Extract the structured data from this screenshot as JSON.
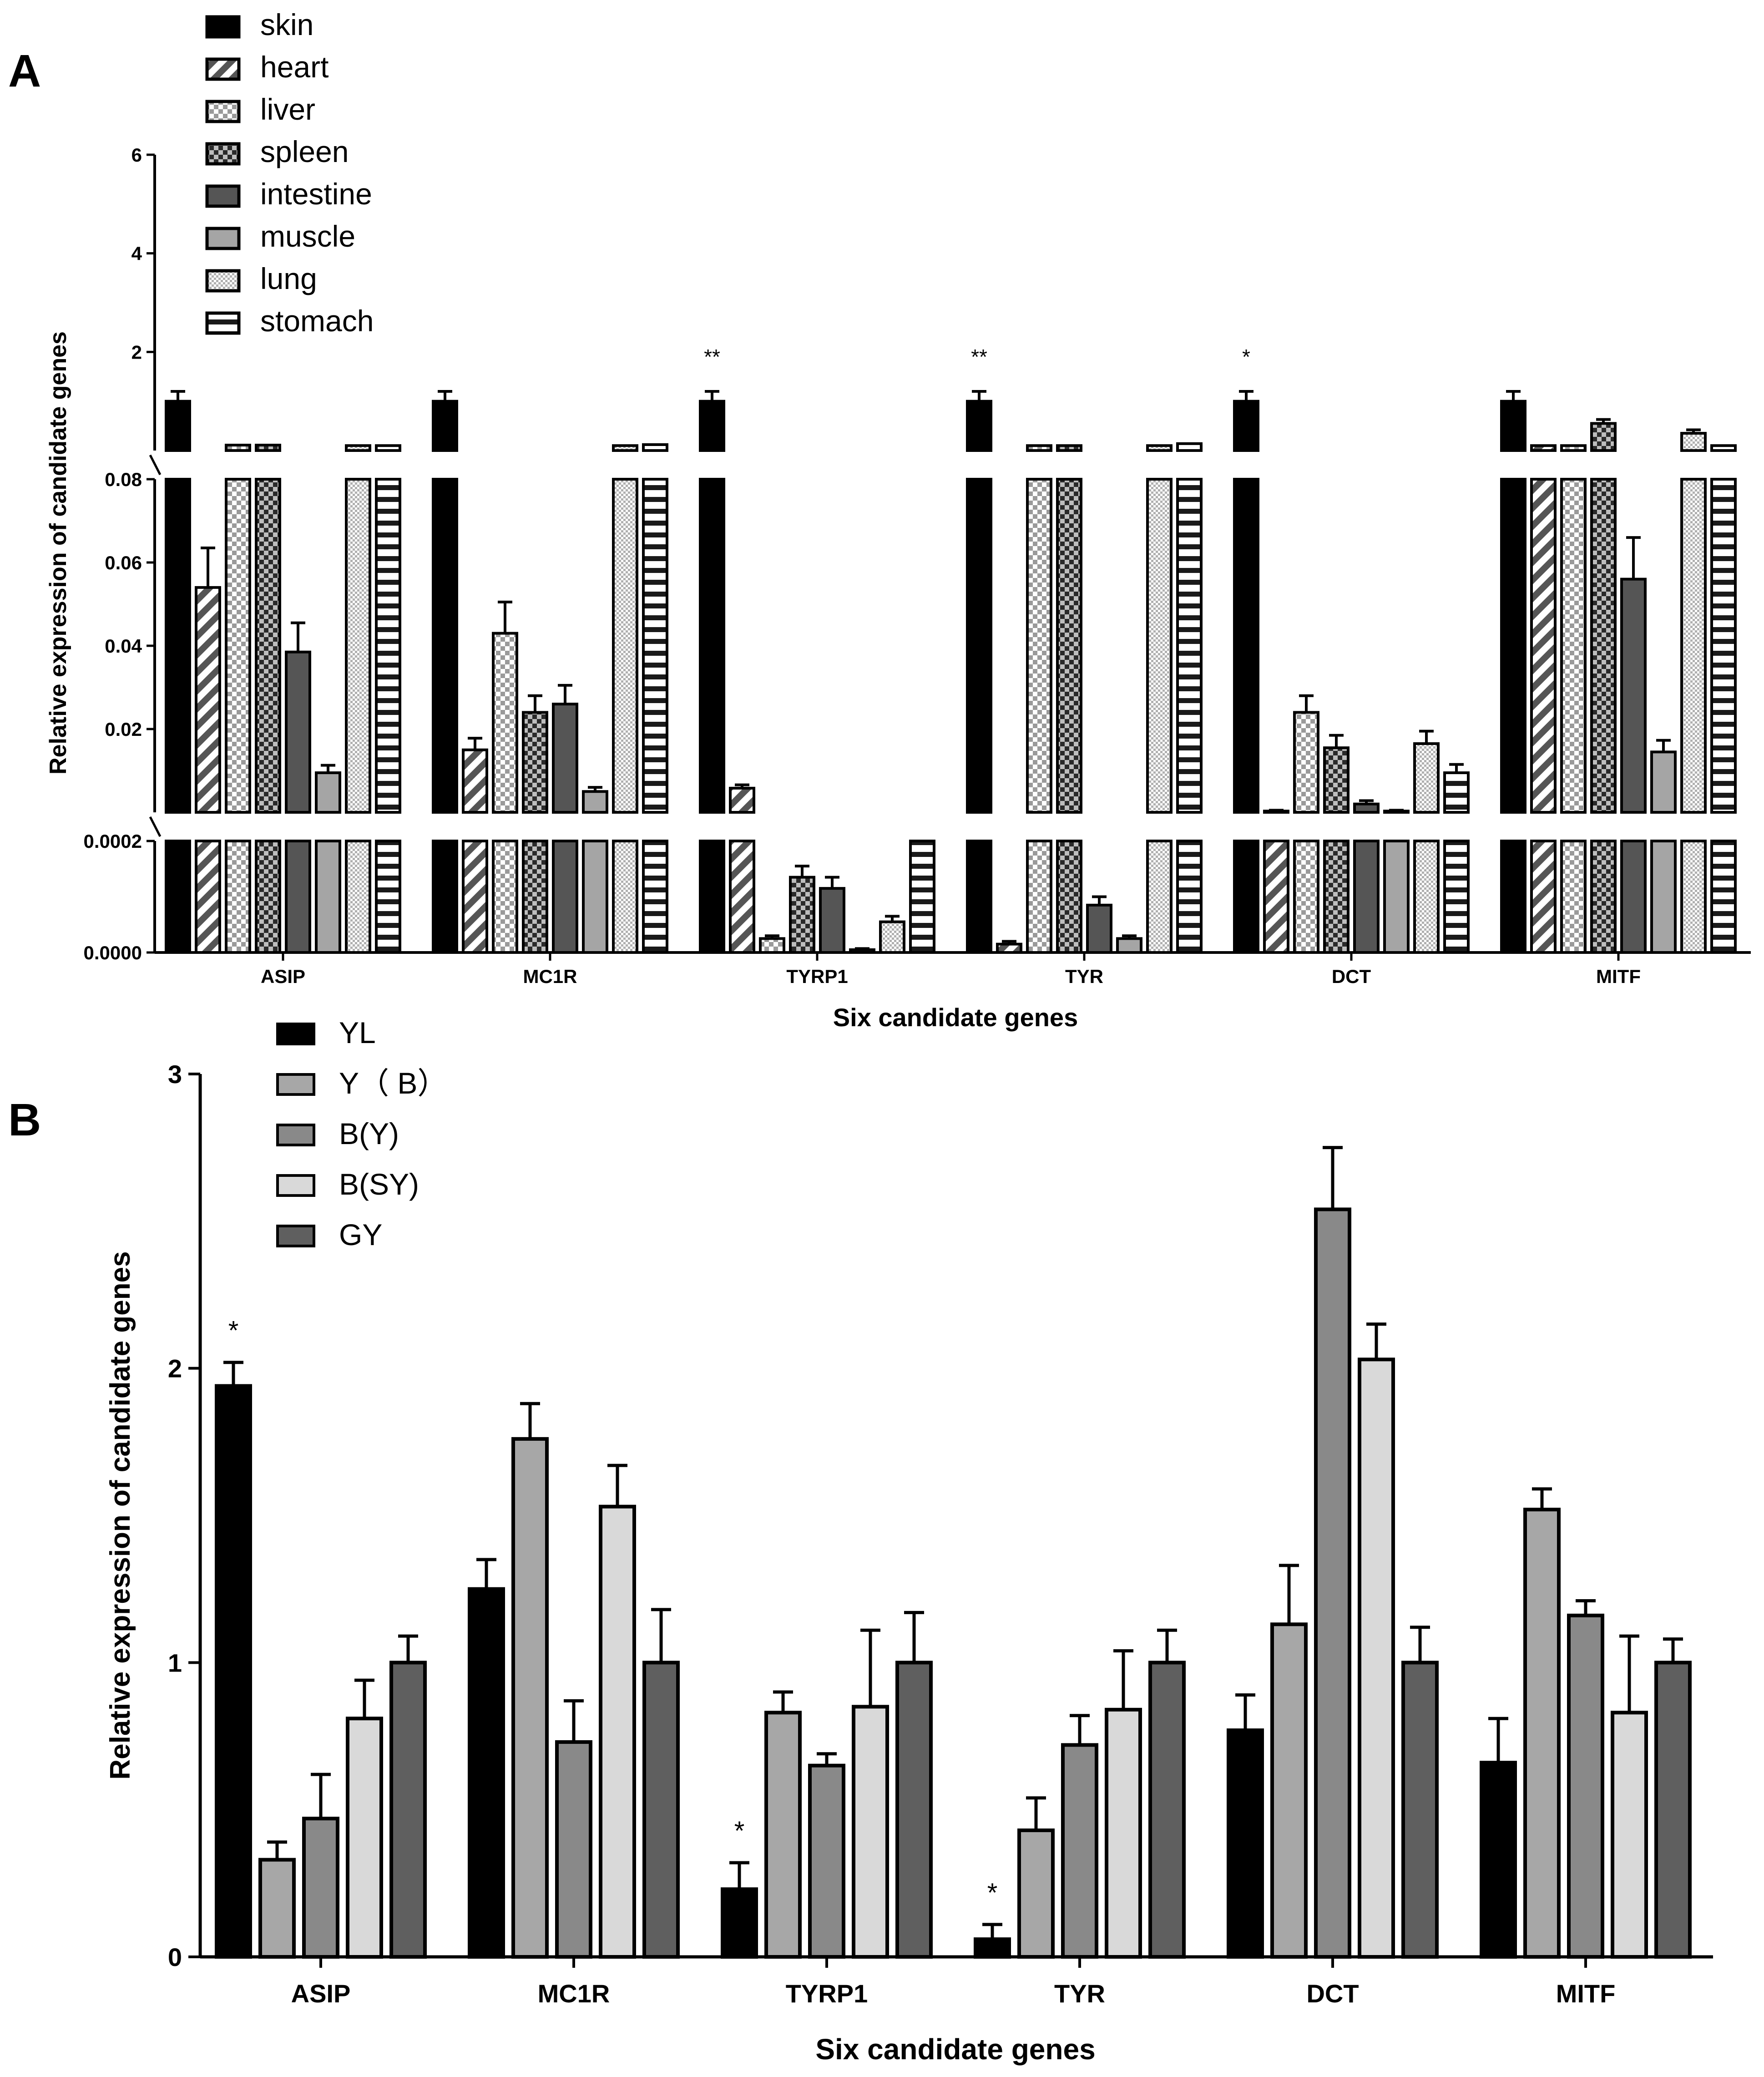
{
  "chart_data": [
    {
      "panel": "A",
      "type": "bar",
      "xlabel": "Six candidate genes",
      "ylabel": "Relative expression of candidate genes",
      "categories": [
        "ASIP",
        "MC1R",
        "TYRP1",
        "TYR",
        "DCT",
        "MITF"
      ],
      "axis_breaks": [
        {
          "segment": "low",
          "ylim": [
            0,
            0.0002
          ],
          "ticks": [
            0,
            0.0002
          ],
          "tick_labels": [
            "0.0000",
            "0.0002"
          ]
        },
        {
          "segment": "mid",
          "ylim": [
            0,
            0.08
          ],
          "ticks": [
            0.02,
            0.04,
            0.06,
            0.08
          ],
          "tick_labels": [
            "0.02",
            "0.04",
            "0.06",
            "0.08"
          ]
        },
        {
          "segment": "high",
          "ylim": [
            0.08,
            6
          ],
          "ticks": [
            2,
            4,
            6
          ],
          "tick_labels": [
            "2",
            "4",
            "6"
          ]
        }
      ],
      "series": [
        {
          "name": "skin",
          "pattern": "solid-black",
          "values": [
            1.0,
            1.0,
            1.0,
            1.0,
            1.0,
            1.0
          ],
          "errors": [
            0.2,
            0.2,
            0.2,
            0.2,
            0.2,
            0.2
          ]
        },
        {
          "name": "heart",
          "pattern": "diagonal",
          "values": [
            0.054,
            0.015,
            0.0058,
            1.5e-05,
            0.0003,
            0.1
          ],
          "errors": [
            0.0095,
            0.0028,
            0.0008,
            5e-06,
            0.0002,
            0.01
          ]
        },
        {
          "name": "liver",
          "pattern": "checker-light",
          "values": [
            0.11,
            0.043,
            2.5e-05,
            0.1,
            0.024,
            0.1
          ],
          "errors": [
            0.01,
            0.0075,
            5e-06,
            0.01,
            0.004,
            0.01
          ]
        },
        {
          "name": "spleen",
          "pattern": "checker-dark",
          "values": [
            0.11,
            0.024,
            0.000135,
            0.1,
            0.0155,
            0.55
          ],
          "errors": [
            0.01,
            0.004,
            2e-05,
            0.01,
            0.003,
            0.08
          ]
        },
        {
          "name": "intestine",
          "pattern": "solid-dark",
          "values": [
            0.0385,
            0.026,
            0.000115,
            8.5e-05,
            0.002,
            0.056
          ],
          "errors": [
            0.007,
            0.0045,
            2e-05,
            1.5e-05,
            0.0008,
            0.01
          ]
        },
        {
          "name": "muscle",
          "pattern": "solid-gray",
          "values": [
            0.0095,
            0.005,
            5e-06,
            2.5e-05,
            0.0003,
            0.0145
          ],
          "errors": [
            0.0018,
            0.001,
            2e-06,
            5e-06,
            0.0002,
            0.0028
          ]
        },
        {
          "name": "lung",
          "pattern": "fine-dots",
          "values": [
            0.1,
            0.1,
            5.5e-05,
            0.1,
            0.0165,
            0.35
          ],
          "errors": [
            0.01,
            0.01,
            1e-05,
            0.01,
            0.003,
            0.07
          ]
        },
        {
          "name": "stomach",
          "pattern": "horizontal-stripes",
          "values": [
            0.1,
            0.12,
            0.0002,
            0.14,
            0.0095,
            0.1
          ],
          "errors": [
            0.01,
            0.01,
            3e-05,
            0.01,
            0.002,
            0.01
          ]
        }
      ],
      "significance": [
        {
          "category": "TYRP1",
          "mark": "**"
        },
        {
          "category": "TYR",
          "mark": "**"
        },
        {
          "category": "DCT",
          "mark": "*"
        }
      ],
      "legend_position": "top-left"
    },
    {
      "panel": "B",
      "type": "bar",
      "xlabel": "Six candidate genes",
      "ylabel": "Relative expression of candidate genes",
      "categories": [
        "ASIP",
        "MC1R",
        "TYRP1",
        "TYR",
        "DCT",
        "MITF"
      ],
      "ylim": [
        0,
        3
      ],
      "ticks": [
        0,
        1,
        2,
        3
      ],
      "tick_labels": [
        "0",
        "1",
        "2",
        "3"
      ],
      "series": [
        {
          "name": "YL",
          "color": "#000000",
          "values": [
            1.94,
            1.25,
            0.23,
            0.06,
            0.77,
            0.66
          ],
          "errors": [
            0.08,
            0.1,
            0.09,
            0.05,
            0.12,
            0.15
          ]
        },
        {
          "name": "Y（ B）",
          "color": "#a7a7a7",
          "values": [
            0.33,
            1.76,
            0.83,
            0.43,
            1.13,
            1.52
          ],
          "errors": [
            0.06,
            0.12,
            0.07,
            0.11,
            0.2,
            0.07
          ]
        },
        {
          "name": "B(Y)",
          "color": "#898989",
          "values": [
            0.47,
            0.73,
            0.65,
            0.72,
            2.54,
            1.16
          ],
          "errors": [
            0.15,
            0.14,
            0.04,
            0.1,
            0.21,
            0.05
          ]
        },
        {
          "name": "B(SY)",
          "color": "#d9d9d9",
          "values": [
            0.81,
            1.53,
            0.85,
            0.84,
            2.03,
            0.83
          ],
          "errors": [
            0.13,
            0.14,
            0.26,
            0.2,
            0.12,
            0.26
          ]
        },
        {
          "name": "GY",
          "color": "#5f5f5f",
          "values": [
            1.0,
            1.0,
            1.0,
            1.0,
            1.0,
            1.0
          ],
          "errors": [
            0.09,
            0.18,
            0.17,
            0.11,
            0.12,
            0.08
          ]
        }
      ],
      "significance": [
        {
          "category": "ASIP",
          "series": "YL",
          "mark": "*"
        },
        {
          "category": "TYRP1",
          "series": "YL",
          "mark": "*"
        },
        {
          "category": "TYR",
          "series": "YL",
          "mark": "*"
        }
      ],
      "legend_position": "top-left"
    }
  ]
}
